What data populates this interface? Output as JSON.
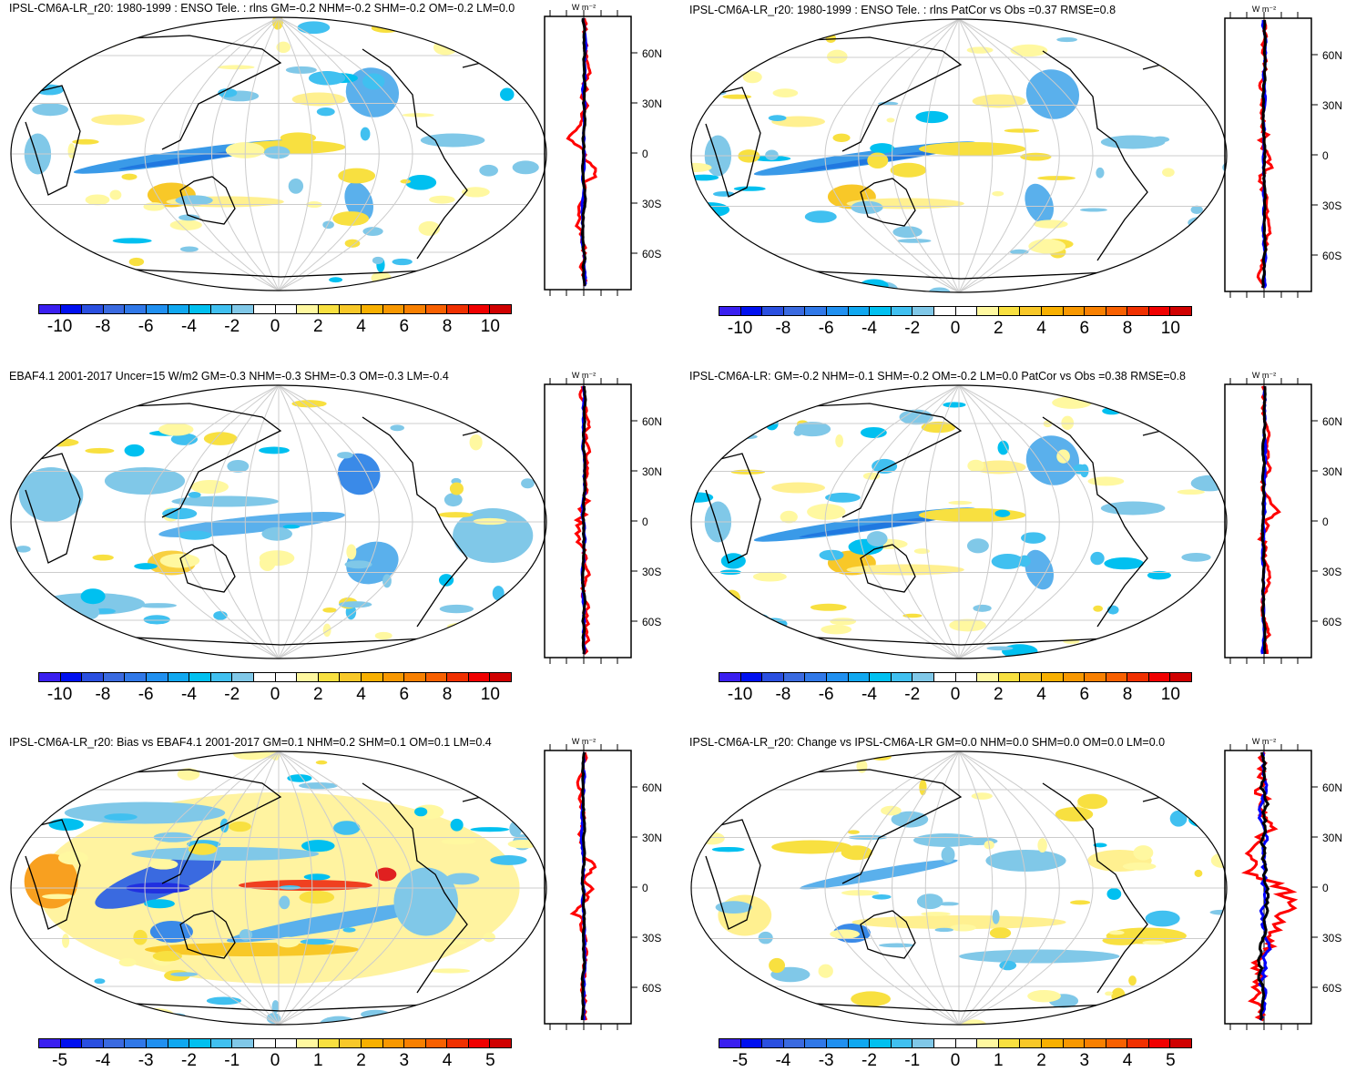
{
  "colors": [
    "#3a1ff0",
    "#0010f0",
    "#2a4fe0",
    "#3a6ae0",
    "#3078e8",
    "#2090f0",
    "#10a8f0",
    "#00c0f0",
    "#40c0f0",
    "#80c8e8",
    "#ffffff",
    "#ffffff",
    "#fff8a0",
    "#f8e040",
    "#f8c828",
    "#f8b000",
    "#f89800",
    "#f88000",
    "#f86000",
    "#f03000",
    "#f00000",
    "#d00000"
  ],
  "zonal_unit": "W m⁻²",
  "lat_labels": [
    "60N",
    "30N",
    "0",
    "30S",
    "60S"
  ],
  "panels": [
    {
      "title": "IPSL-CM6A-LR_r20: 1980-1999 : ENSO Tele. : rlns GM=-0.2 NHM=-0.2 SHM=-0.2 OM=-0.2 LM=0.0",
      "cbar_labels": [
        "-10",
        "-8",
        "-6",
        "-4",
        "-2",
        "0",
        "2",
        "4",
        "6",
        "8",
        "10"
      ],
      "zonal_ticks": [
        "-4.0",
        "0.0",
        "4.0"
      ],
      "style": "model"
    },
    {
      "title": "IPSL-CM6A-LR_r20: 1980-1999 : ENSO Tele. : rlns PatCor vs Obs =0.37 RMSE=0.8",
      "cbar_labels": [
        "-10",
        "-8",
        "-6",
        "-4",
        "-2",
        "0",
        "2",
        "4",
        "6",
        "8",
        "10"
      ],
      "zonal_ticks": [
        "-4.0",
        "0.0",
        "4.0"
      ],
      "style": "model"
    },
    {
      "title": "EBAF4.1 2001-2017 Uncer=15 W/m2 GM=-0.3 NHM=-0.3 SHM=-0.3 OM=-0.3 LM=-0.4",
      "cbar_labels": [
        "-10",
        "-8",
        "-6",
        "-4",
        "-2",
        "0",
        "2",
        "4",
        "6",
        "8",
        "10"
      ],
      "zonal_ticks": [
        "-4.0",
        "0.0",
        "4.0"
      ],
      "style": "obs"
    },
    {
      "title": "IPSL-CM6A-LR: GM=-0.2 NHM=-0.1 SHM=-0.2 OM=-0.2 LM=0.0 PatCor vs Obs =0.38 RMSE=0.8",
      "cbar_labels": [
        "-10",
        "-8",
        "-6",
        "-4",
        "-2",
        "0",
        "2",
        "4",
        "6",
        "8",
        "10"
      ],
      "zonal_ticks": [
        "-4.0",
        "0.0",
        "4.0"
      ],
      "style": "model"
    },
    {
      "title": "IPSL-CM6A-LR_r20: Bias vs EBAF4.1 2001-2017 GM=0.1 NHM=0.2 SHM=0.1 OM=0.1 LM=0.4",
      "cbar_labels": [
        "-5",
        "-4",
        "-3",
        "-2",
        "-1",
        "0",
        "1",
        "2",
        "3",
        "4",
        "5"
      ],
      "zonal_ticks": [
        "-4.0",
        "0.0",
        "4.0"
      ],
      "style": "bias"
    },
    {
      "title": "IPSL-CM6A-LR_r20: Change vs IPSL-CM6A-LR GM=0.0 NHM=0.0 SHM=0.0 OM=0.0 LM=0.0",
      "cbar_labels": [
        "-5",
        "-4",
        "-3",
        "-2",
        "-1",
        "0",
        "1",
        "2",
        "3",
        "4",
        "5"
      ],
      "zonal_ticks": [
        "-0.60",
        "0.00",
        "0.60"
      ],
      "style": "change"
    }
  ]
}
